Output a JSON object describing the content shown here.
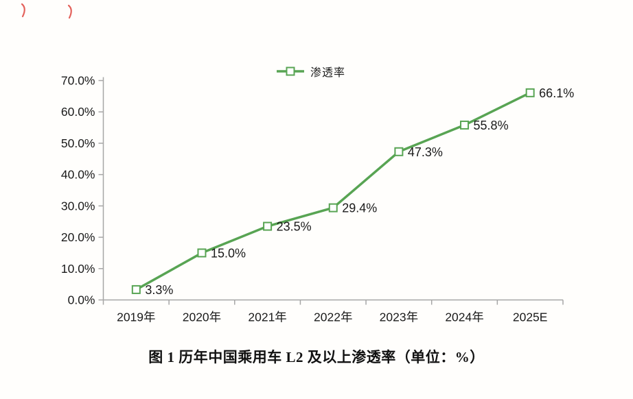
{
  "page": {
    "background": "#fffefc"
  },
  "annotations": {
    "color": "#dd3b33",
    "marks": [
      "red-pen-stroke",
      "red-pen-stroke"
    ]
  },
  "legend": {
    "label": "渗透率"
  },
  "caption": {
    "text": "图 1  历年中国乘用车 L2 及以上渗透率（单位：%）"
  },
  "chart_data": {
    "type": "line",
    "title": "图 1  历年中国乘用车 L2 及以上渗透率（单位：%）",
    "legend_entries": [
      "渗透率"
    ],
    "legend_position": "top-center",
    "categories": [
      "2019年",
      "2020年",
      "2021年",
      "2022年",
      "2023年",
      "2024年",
      "2025E"
    ],
    "series": [
      {
        "name": "渗透率",
        "values": [
          3.3,
          15.0,
          23.5,
          29.4,
          47.3,
          55.8,
          66.1
        ]
      }
    ],
    "data_labels": [
      "3.3%",
      "15.0%",
      "23.5%",
      "29.4%",
      "47.3%",
      "55.8%",
      "66.1%"
    ],
    "ylim": [
      0,
      70
    ],
    "ytick_step": 10,
    "ytick_labels": [
      "0.0%",
      "10.0%",
      "20.0%",
      "30.0%",
      "40.0%",
      "50.0%",
      "60.0%",
      "70.0%"
    ],
    "xlabel": "",
    "ylabel": "",
    "grid": false,
    "line_color": "#58a453",
    "marker": "open-square",
    "marker_fill": "#ffffff",
    "axis_color": "#a6a6a6",
    "text_color": "#1a1a1a"
  }
}
